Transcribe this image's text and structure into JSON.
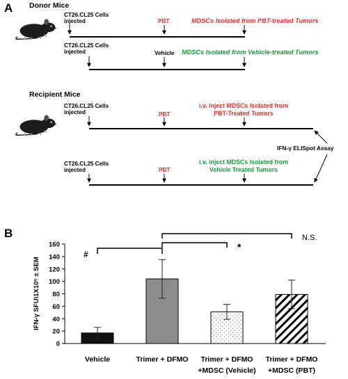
{
  "panel_a": {
    "label": "A",
    "donor_header": "Donor Mice",
    "recipient_header": "Recipient Mice",
    "cells_injected_line1": "CT26.CL25 Cells",
    "cells_injected_line2": "injected",
    "pbt_label": "PBT",
    "vehicle_label": "Vehicle",
    "donor_pbt_result": "MDSCs Isolated from PBT-treated Tumors",
    "donor_vehicle_result": "MDSCs Isolated from Vehicle-treated Tumors",
    "recipient1_result_line1": "i.v. inject MDSCs Isolated from",
    "recipient1_result_line2": "PBT-Treated Tumors",
    "recipient2_result_line1": "i.v. inject MDSCs Isolated from",
    "recipient2_result_line2": "Vehicle Treated Tumors",
    "assay_label": "IFN-γ ELISpot Assay",
    "colors": {
      "red": "#e8312f",
      "green": "#1a9a3c"
    }
  },
  "panel_b": {
    "label": "B",
    "sig_hash": "#",
    "sig_star": "*",
    "sig_ns": "N.S."
  },
  "chart_data": {
    "type": "bar",
    "ylabel": "IFN-γ SFU\\1X10⁶ ± SEM",
    "ylim": [
      0,
      160
    ],
    "yticks": [
      0,
      20,
      40,
      60,
      80,
      100,
      120,
      140,
      160
    ],
    "categories": [
      [
        "Vehicle"
      ],
      [
        "Trimer + DFMO"
      ],
      [
        "Trimer + DFMO",
        "+MDSC (Vehicle)"
      ],
      [
        "Trimer + DFMO",
        "+MDSC (PBT)"
      ]
    ],
    "values": [
      17,
      104,
      51,
      79
    ],
    "errors": [
      9,
      31,
      12,
      23
    ],
    "fills": [
      "solid-black",
      "solid-gray",
      "dotted",
      "hatched"
    ],
    "grid": false,
    "legend": "none"
  }
}
